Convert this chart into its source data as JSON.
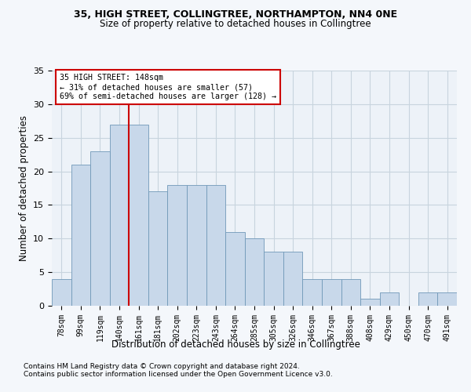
{
  "title1": "35, HIGH STREET, COLLINGTREE, NORTHAMPTON, NN4 0NE",
  "title2": "Size of property relative to detached houses in Collingtree",
  "xlabel": "Distribution of detached houses by size in Collingtree",
  "ylabel": "Number of detached properties",
  "categories": [
    "78sqm",
    "99sqm",
    "119sqm",
    "140sqm",
    "161sqm",
    "181sqm",
    "202sqm",
    "223sqm",
    "243sqm",
    "264sqm",
    "285sqm",
    "305sqm",
    "326sqm",
    "346sqm",
    "367sqm",
    "388sqm",
    "408sqm",
    "429sqm",
    "450sqm",
    "470sqm",
    "491sqm"
  ],
  "values": [
    4,
    21,
    23,
    27,
    27,
    17,
    18,
    18,
    18,
    11,
    10,
    8,
    8,
    4,
    4,
    4,
    1,
    2,
    0,
    2,
    2
  ],
  "bar_color": "#c8d8ea",
  "bar_edge_color": "#7098b8",
  "bar_width": 1.0,
  "vline_x": 3.5,
  "vline_color": "#cc0000",
  "annotation_text": "35 HIGH STREET: 148sqm\n← 31% of detached houses are smaller (57)\n69% of semi-detached houses are larger (128) →",
  "annotation_box_color": "white",
  "annotation_box_edge_color": "#cc0000",
  "ylim": [
    0,
    35
  ],
  "yticks": [
    0,
    5,
    10,
    15,
    20,
    25,
    30,
    35
  ],
  "grid_color": "#c8d4de",
  "footnote1": "Contains HM Land Registry data © Crown copyright and database right 2024.",
  "footnote2": "Contains public sector information licensed under the Open Government Licence v3.0.",
  "bg_color": "#f4f7fb",
  "plot_bg_color": "#edf2f8"
}
